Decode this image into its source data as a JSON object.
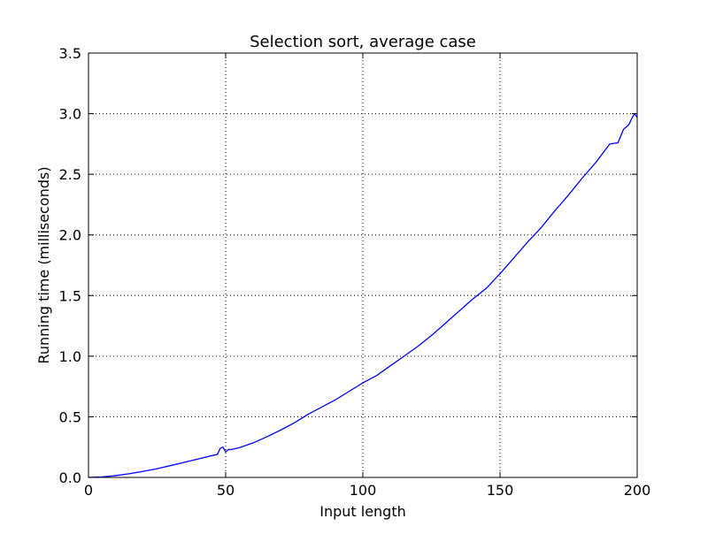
{
  "chart_data": {
    "type": "line",
    "title": "Selection sort, average case",
    "xlabel": "Input length",
    "ylabel": "Running time (milliseconds)",
    "xlim": [
      0,
      200
    ],
    "ylim": [
      0,
      3.5
    ],
    "xticks": [
      0,
      50,
      100,
      150,
      200
    ],
    "xtick_labels": [
      "0",
      "50",
      "100",
      "150",
      "200"
    ],
    "yticks": [
      0,
      0.5,
      1.0,
      1.5,
      2.0,
      2.5,
      3.0,
      3.5
    ],
    "ytick_labels": [
      "0.0",
      "0.5",
      "1.0",
      "1.5",
      "2.0",
      "2.5",
      "3.0",
      "3.5"
    ],
    "grid": true,
    "line_color": "#0000ff",
    "series": [
      {
        "x": [
          0,
          5,
          10,
          15,
          20,
          25,
          30,
          35,
          40,
          45,
          47,
          48,
          49,
          50,
          51,
          52,
          55,
          60,
          65,
          70,
          75,
          80,
          85,
          90,
          95,
          100,
          105,
          110,
          115,
          120,
          125,
          130,
          135,
          140,
          145,
          150,
          155,
          160,
          165,
          170,
          175,
          180,
          185,
          190,
          193,
          195,
          197,
          198,
          199,
          200
        ],
        "values": [
          0.0,
          0.004,
          0.015,
          0.031,
          0.05,
          0.072,
          0.098,
          0.125,
          0.152,
          0.18,
          0.19,
          0.24,
          0.25,
          0.21,
          0.23,
          0.23,
          0.245,
          0.285,
          0.335,
          0.39,
          0.45,
          0.52,
          0.58,
          0.64,
          0.71,
          0.78,
          0.84,
          0.92,
          1.0,
          1.08,
          1.17,
          1.27,
          1.37,
          1.47,
          1.56,
          1.68,
          1.81,
          1.94,
          2.06,
          2.2,
          2.33,
          2.47,
          2.6,
          2.75,
          2.76,
          2.87,
          2.91,
          2.96,
          3.0,
          2.97
        ]
      }
    ]
  }
}
